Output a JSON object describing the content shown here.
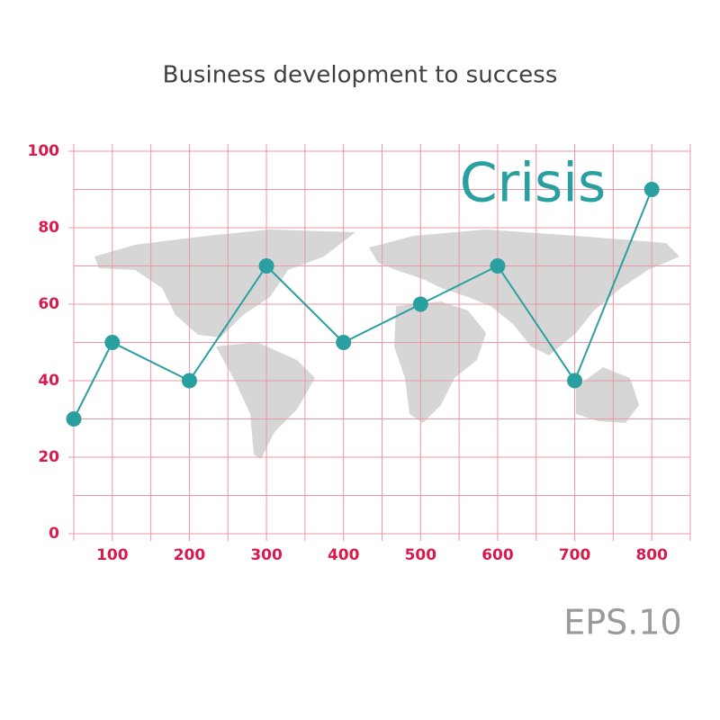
{
  "chart_data": {
    "type": "line",
    "title": "Business development to success",
    "annotation": "Crisis",
    "footer": "EPS.10",
    "x": [
      50,
      100,
      200,
      300,
      400,
      500,
      600,
      700,
      800
    ],
    "series": [
      {
        "color": "#2a9fa0",
        "values": [
          30,
          50,
          40,
          70,
          50,
          60,
          70,
          40,
          90
        ]
      }
    ],
    "xlim": [
      50,
      850
    ],
    "ylim": [
      0,
      100
    ],
    "xticks": [
      100,
      200,
      300,
      400,
      500,
      600,
      700,
      800
    ],
    "yticks": [
      0,
      20,
      40,
      60,
      80,
      100
    ],
    "xgrid": [
      50,
      100,
      150,
      200,
      250,
      300,
      350,
      400,
      450,
      500,
      550,
      600,
      650,
      700,
      750,
      800,
      850
    ],
    "ygrid": [
      0,
      10,
      20,
      30,
      40,
      50,
      60,
      70,
      80,
      90,
      100
    ],
    "grid": true,
    "grid_color": "#ec97a4",
    "tick_color": "#d81b4c"
  }
}
